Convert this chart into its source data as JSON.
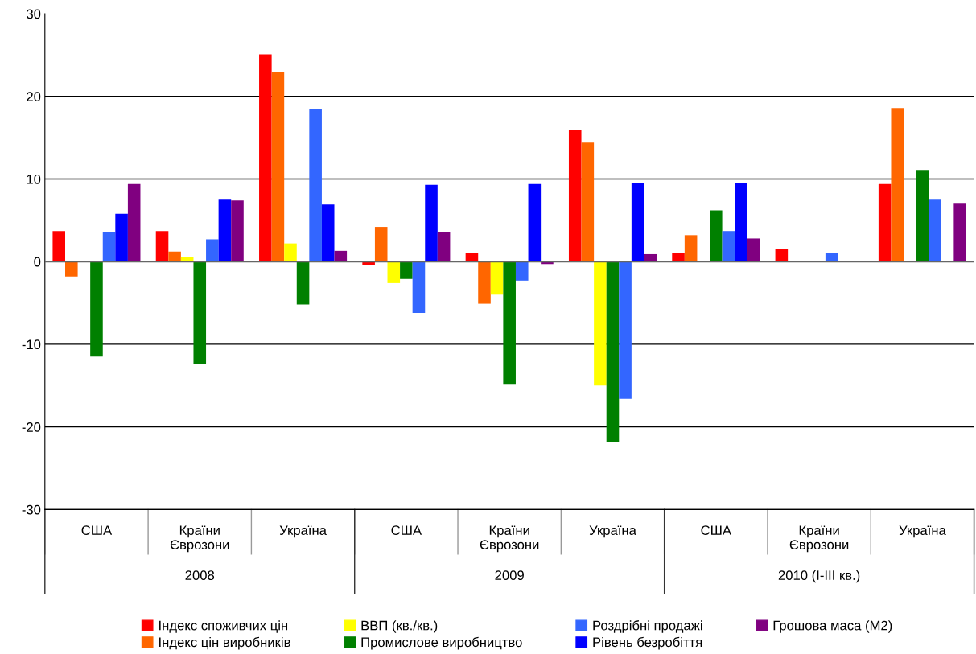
{
  "chart_data": {
    "type": "bar",
    "categories": [
      "США",
      "Країни\nЄврозони",
      "Україна",
      "США",
      "Країни\nЄврозони",
      "Україна",
      "США",
      "Країни\nЄврозони",
      "Україна"
    ],
    "annotations": [
      "2008",
      "2009",
      "2010 (I-III кв.)"
    ],
    "series": [
      {
        "name": "Індекс споживчих цін",
        "color": "#ff0000",
        "values": [
          3.7,
          3.7,
          25.1,
          -0.4,
          1.0,
          15.9,
          1.0,
          1.5,
          9.4
        ]
      },
      {
        "name": "Індекс цін виробників",
        "color": "#ff6600",
        "values": [
          -1.8,
          1.2,
          22.9,
          4.2,
          -5.1,
          14.4,
          3.2,
          null,
          18.6
        ]
      },
      {
        "name": "ВВП (кв./кв.)",
        "color": "#ffff00",
        "values": [
          null,
          0.5,
          2.2,
          -2.6,
          -4.0,
          -15.0,
          null,
          null,
          null
        ]
      },
      {
        "name": "Промислове виробництво",
        "color": "#008000",
        "values": [
          -11.5,
          -12.4,
          -5.2,
          -2.1,
          -14.8,
          -21.8,
          6.2,
          null,
          11.1
        ]
      },
      {
        "name": "Роздрібні продажі",
        "color": "#3366ff",
        "values": [
          3.6,
          2.7,
          18.5,
          -6.2,
          -2.3,
          -16.6,
          3.7,
          1.0,
          7.5
        ]
      },
      {
        "name": "Рівень безробіття",
        "color": "#0000ff",
        "values": [
          5.8,
          7.5,
          6.9,
          9.3,
          9.4,
          9.5,
          9.5,
          null,
          null
        ]
      },
      {
        "name": "Грошова маса (М2)",
        "color": "#800080",
        "values": [
          9.4,
          7.4,
          1.3,
          3.6,
          -0.3,
          0.9,
          2.8,
          null,
          7.1
        ]
      }
    ],
    "ylim": [
      -30,
      30
    ],
    "yticks": [
      -30,
      -20,
      -10,
      0,
      10,
      20,
      30
    ],
    "grid": "y",
    "legend": "bottom"
  }
}
